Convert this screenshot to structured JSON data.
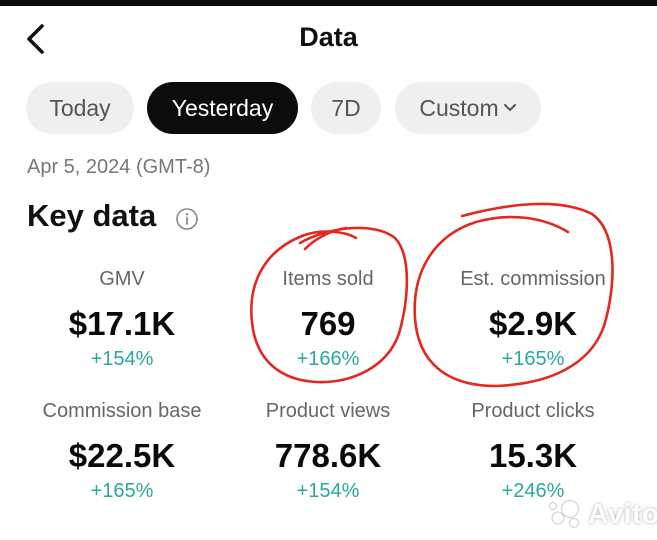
{
  "header": {
    "title": "Data"
  },
  "tabs": [
    {
      "label": "Today",
      "active": false
    },
    {
      "label": "Yesterday",
      "active": true
    },
    {
      "label": "7D",
      "active": false
    },
    {
      "label": "Custom",
      "active": false
    }
  ],
  "date_label": "Apr 5, 2024 (GMT-8)",
  "key_data": {
    "title": "Key data",
    "metrics": [
      {
        "label": "GMV",
        "value": "$17.1K",
        "change": "+154%"
      },
      {
        "label": "Items sold",
        "value": "769",
        "change": "+166%"
      },
      {
        "label": "Est. commission",
        "value": "$2.9K",
        "change": "+165%"
      },
      {
        "label": "Commission base",
        "value": "$22.5K",
        "change": "+165%"
      },
      {
        "label": "Product views",
        "value": "778.6K",
        "change": "+154%"
      },
      {
        "label": "Product clicks",
        "value": "15.3K",
        "change": "+246%"
      }
    ]
  },
  "watermark": {
    "text": "Avito"
  },
  "colors": {
    "accent_positive": "#2aa7a2",
    "annotation_red": "#e2281f",
    "active_tab": "#0c0c0c"
  }
}
